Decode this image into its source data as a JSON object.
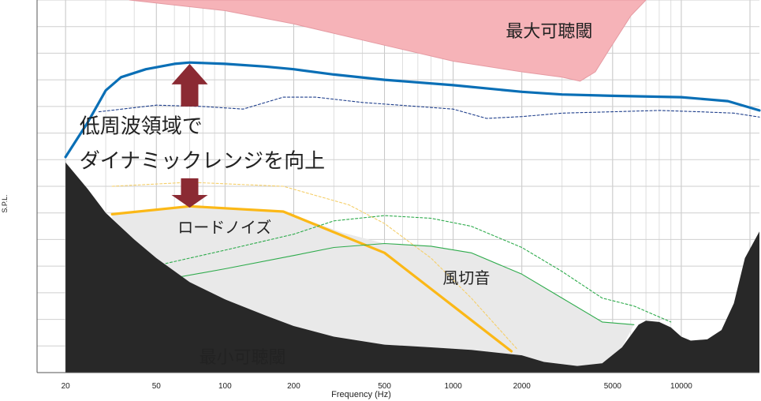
{
  "chart_data": {
    "type": "area",
    "xlabel": "Frequency (Hz)",
    "ylabel": "S.P.L.",
    "x_scale": "log",
    "xlim": [
      15,
      22000
    ],
    "ylim": [
      0,
      14
    ],
    "grid": true,
    "x_ticks": [
      20,
      50,
      100,
      200,
      500,
      1000,
      2000,
      5000,
      10000
    ],
    "x_tick_labels": [
      "20",
      "50",
      "100",
      "200",
      "500",
      "1000",
      "2000",
      "5000",
      "10000"
    ],
    "series": [
      {
        "name": "最大可聴閾",
        "style": "filled-area-top",
        "color": "#f6b3b8",
        "edge": "#e59aa2",
        "points": [
          [
            38,
            14
          ],
          [
            100,
            13.6
          ],
          [
            200,
            13.1
          ],
          [
            500,
            12.3
          ],
          [
            1000,
            11.7
          ],
          [
            2000,
            11.3
          ],
          [
            3000,
            11.1
          ],
          [
            3600,
            10.95
          ],
          [
            4200,
            11.3
          ],
          [
            4800,
            12.1
          ],
          [
            6000,
            13.4
          ],
          [
            7000,
            14
          ]
        ]
      },
      {
        "name": "",
        "style": "solid",
        "color": "#0a6fb6",
        "width": 3.2,
        "points": [
          [
            20,
            8.1
          ],
          [
            25,
            9.4
          ],
          [
            30,
            10.6
          ],
          [
            35,
            11.1
          ],
          [
            45,
            11.4
          ],
          [
            60,
            11.6
          ],
          [
            70,
            11.65
          ],
          [
            100,
            11.6
          ],
          [
            150,
            11.5
          ],
          [
            200,
            11.4
          ],
          [
            300,
            11.2
          ],
          [
            500,
            11.0
          ],
          [
            1000,
            10.8
          ],
          [
            2000,
            10.55
          ],
          [
            3000,
            10.45
          ],
          [
            5000,
            10.4
          ],
          [
            10000,
            10.35
          ],
          [
            16000,
            10.2
          ],
          [
            22000,
            9.85
          ]
        ]
      },
      {
        "name": "",
        "style": "dashed",
        "color": "#1f3f8c",
        "width": 1.1,
        "points": [
          [
            28,
            9.8
          ],
          [
            50,
            10.05
          ],
          [
            80,
            10.0
          ],
          [
            120,
            9.9
          ],
          [
            180,
            10.35
          ],
          [
            250,
            10.35
          ],
          [
            400,
            10.15
          ],
          [
            700,
            10.0
          ],
          [
            1000,
            9.9
          ],
          [
            1400,
            9.55
          ],
          [
            2000,
            9.62
          ],
          [
            3000,
            9.75
          ],
          [
            5000,
            9.8
          ],
          [
            8000,
            9.85
          ],
          [
            12000,
            9.8
          ],
          [
            17000,
            9.75
          ],
          [
            22000,
            9.6
          ]
        ]
      },
      {
        "name": "ロードノイズ",
        "style": "solid",
        "color": "#fbb817",
        "width": 3.2,
        "points": [
          [
            32,
            5.95
          ],
          [
            70,
            6.25
          ],
          [
            180,
            6.05
          ],
          [
            500,
            4.5
          ],
          [
            1000,
            2.5
          ],
          [
            1800,
            0.8
          ]
        ]
      },
      {
        "name": "",
        "style": "dashed",
        "color": "#f5cf6a",
        "width": 1.1,
        "points": [
          [
            32,
            7.0
          ],
          [
            70,
            7.15
          ],
          [
            180,
            7.0
          ],
          [
            350,
            6.3
          ],
          [
            500,
            5.6
          ],
          [
            800,
            4.3
          ],
          [
            1200,
            2.8
          ],
          [
            1900,
            0.9
          ]
        ]
      },
      {
        "name": "風切音",
        "style": "solid",
        "color": "#2eab4c",
        "width": 1.1,
        "points": [
          [
            55,
            3.5
          ],
          [
            100,
            3.9
          ],
          [
            200,
            4.4
          ],
          [
            300,
            4.7
          ],
          [
            500,
            4.85
          ],
          [
            800,
            4.75
          ],
          [
            1200,
            4.5
          ],
          [
            2000,
            3.7
          ],
          [
            3000,
            2.8
          ],
          [
            4500,
            1.9
          ],
          [
            6200,
            1.8
          ]
        ]
      },
      {
        "name": "",
        "style": "dashed",
        "color": "#2eab4c",
        "width": 1.1,
        "points": [
          [
            55,
            4.1
          ],
          [
            100,
            4.6
          ],
          [
            200,
            5.2
          ],
          [
            300,
            5.7
          ],
          [
            500,
            5.9
          ],
          [
            800,
            5.8
          ],
          [
            1200,
            5.5
          ],
          [
            2000,
            4.7
          ],
          [
            3000,
            3.8
          ],
          [
            4500,
            2.8
          ],
          [
            6200,
            2.5
          ],
          [
            9000,
            1.9
          ]
        ]
      },
      {
        "name": "最小可聴閾",
        "style": "filled-area-bottom",
        "color": "#282828",
        "points": [
          [
            20,
            7.9
          ],
          [
            25,
            6.9
          ],
          [
            30,
            6.0
          ],
          [
            40,
            5.0
          ],
          [
            50,
            4.3
          ],
          [
            70,
            3.4
          ],
          [
            100,
            2.75
          ],
          [
            150,
            2.15
          ],
          [
            200,
            1.75
          ],
          [
            300,
            1.35
          ],
          [
            500,
            1.05
          ],
          [
            800,
            0.95
          ],
          [
            1200,
            0.85
          ],
          [
            2000,
            0.65
          ],
          [
            2500,
            0.4
          ],
          [
            3500,
            0.25
          ],
          [
            4500,
            0.35
          ],
          [
            5500,
            0.95
          ],
          [
            6500,
            1.8
          ],
          [
            7000,
            1.95
          ],
          [
            8000,
            1.9
          ],
          [
            9000,
            1.7
          ],
          [
            10000,
            1.35
          ],
          [
            11000,
            1.2
          ],
          [
            13000,
            1.25
          ],
          [
            15000,
            1.6
          ],
          [
            17000,
            2.6
          ],
          [
            19000,
            4.3
          ],
          [
            22000,
            5.3
          ]
        ]
      }
    ],
    "annotations": [
      {
        "text": "最大可聴閾",
        "x": 1700,
        "y": 12.6
      },
      {
        "text": "低周波領域で",
        "x": 23,
        "y": 9.0
      },
      {
        "text": "ダイナミックレンジを向上",
        "x": 23,
        "y": 7.7
      },
      {
        "text": "ロードノイズ",
        "x": 62,
        "y": 5.25
      },
      {
        "text": "風切音",
        "x": 900,
        "y": 3.35
      },
      {
        "text": "最小可聴閾",
        "x": 77,
        "y": 0.35
      }
    ],
    "arrows": [
      {
        "direction": "up",
        "x": 70,
        "y_from": 10.0,
        "y_to": 11.6,
        "color": "#8b2a33"
      },
      {
        "direction": "down",
        "x": 70,
        "y_from": 7.3,
        "y_to": 6.2,
        "color": "#8b2a33"
      }
    ]
  }
}
